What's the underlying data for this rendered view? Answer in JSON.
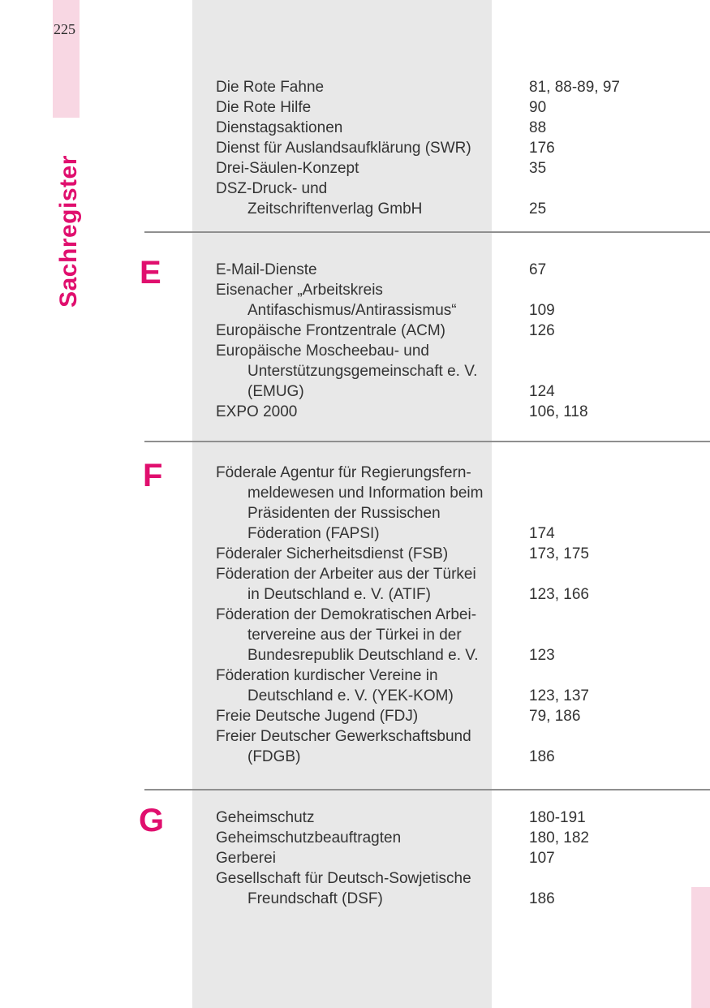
{
  "page": {
    "number": "225",
    "side_label": "Sachregister"
  },
  "colors": {
    "accent_pink": "#e00f6e",
    "light_pink": "#f8d7e3",
    "gray_column": "#e8e8e8",
    "divider": "#8f8f8f",
    "text": "#333333"
  },
  "index": {
    "blocks": [
      {
        "letter": "",
        "rows": [
          {
            "text": "Die Rote Fahne",
            "indent": false,
            "pages": "81, 88-89, 97"
          },
          {
            "text": "Die Rote Hilfe",
            "indent": false,
            "pages": "90"
          },
          {
            "text": "Dienstagsaktionen",
            "indent": false,
            "pages": "88"
          },
          {
            "text": "Dienst für Auslandsaufklärung (SWR)",
            "indent": false,
            "pages": "176"
          },
          {
            "text": "Drei-Säulen-Konzept",
            "indent": false,
            "pages": "35"
          },
          {
            "text": "DSZ-Druck- und",
            "indent": false,
            "pages": ""
          },
          {
            "text": "Zeitschriftenverlag GmbH",
            "indent": true,
            "pages": "25"
          }
        ]
      },
      {
        "letter": "E",
        "rows": [
          {
            "text": "E-Mail-Dienste",
            "indent": false,
            "pages": "67"
          },
          {
            "text": "Eisenacher „Arbeitskreis",
            "indent": false,
            "pages": ""
          },
          {
            "text": "Antifaschismus/Antirassismus“",
            "indent": true,
            "pages": "109"
          },
          {
            "text": "Europäische Frontzentrale (ACM)",
            "indent": false,
            "pages": "126"
          },
          {
            "text": "Europäische Moscheebau- und",
            "indent": false,
            "pages": ""
          },
          {
            "text": "Unterstützungsgemeinschaft e. V.",
            "indent": true,
            "pages": ""
          },
          {
            "text": "(EMUG)",
            "indent": true,
            "pages": "124"
          },
          {
            "text": "EXPO 2000",
            "indent": false,
            "pages": "106, 118"
          }
        ]
      },
      {
        "letter": "F",
        "rows": [
          {
            "text": "Föderale Agentur für Regierungsfern-",
            "indent": false,
            "pages": ""
          },
          {
            "text": "meldewesen und Information beim",
            "indent": true,
            "pages": ""
          },
          {
            "text": "Präsidenten der Russischen",
            "indent": true,
            "pages": ""
          },
          {
            "text": "Föderation (FAPSI)",
            "indent": true,
            "pages": "174"
          },
          {
            "text": "Föderaler Sicherheitsdienst (FSB)",
            "indent": false,
            "pages": "173, 175"
          },
          {
            "text": "Föderation der Arbeiter aus der Türkei",
            "indent": false,
            "pages": ""
          },
          {
            "text": "in Deutschland e. V. (ATIF)",
            "indent": true,
            "pages": "123, 166"
          },
          {
            "text": "Föderation der Demokratischen Arbei-",
            "indent": false,
            "pages": ""
          },
          {
            "text": "tervereine aus der Türkei in der",
            "indent": true,
            "pages": ""
          },
          {
            "text": "Bundesrepublik Deutschland e. V.",
            "indent": true,
            "pages": "123"
          },
          {
            "text": "Föderation kurdischer Vereine in",
            "indent": false,
            "pages": ""
          },
          {
            "text": "Deutschland e. V. (YEK-KOM)",
            "indent": true,
            "pages": "123, 137"
          },
          {
            "text": "Freie Deutsche Jugend (FDJ)",
            "indent": false,
            "pages": "79, 186"
          },
          {
            "text": "Freier Deutscher Gewerkschaftsbund",
            "indent": false,
            "pages": ""
          },
          {
            "text": "(FDGB)",
            "indent": true,
            "pages": "186"
          }
        ]
      },
      {
        "letter": "G",
        "rows": [
          {
            "text": "Geheimschutz",
            "indent": false,
            "pages": "180-191"
          },
          {
            "text": "Geheimschutzbeauftragten",
            "indent": false,
            "pages": "180, 182"
          },
          {
            "text": "Gerberei",
            "indent": false,
            "pages": "107"
          },
          {
            "text": "Gesellschaft für Deutsch-Sowjetische",
            "indent": false,
            "pages": ""
          },
          {
            "text": "Freundschaft (DSF)",
            "indent": true,
            "pages": "186"
          }
        ]
      }
    ]
  }
}
